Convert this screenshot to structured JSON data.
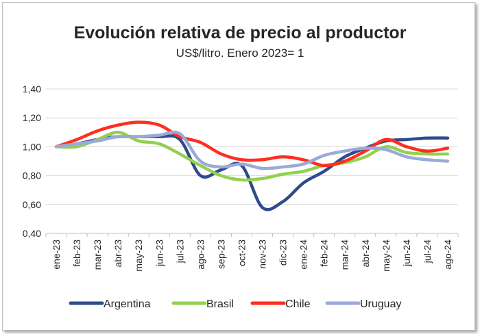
{
  "chart_data": {
    "type": "line",
    "title": "Evolución relativa de precio al productor",
    "subtitle": "US$/litro. Enero 2023= 1",
    "categories": [
      "ene-23",
      "feb-23",
      "mar-23",
      "abr-23",
      "may-23",
      "jun-23",
      "jul-23",
      "ago-23",
      "sep-23",
      "oct-23",
      "nov-23",
      "dic-23",
      "ene-24",
      "feb-24",
      "mar-24",
      "abr-24",
      "may-24",
      "jun-24",
      "jul-24",
      "ago-24"
    ],
    "y_ticks": [
      "0,40",
      "0,60",
      "0,80",
      "1,00",
      "1,20",
      "1,40"
    ],
    "ylim": [
      0.4,
      1.4
    ],
    "grid": "horizontal",
    "legend_position": "bottom",
    "series": [
      {
        "name": "Argentina",
        "color": "#2f4b8c",
        "values": [
          1.0,
          1.02,
          1.05,
          1.07,
          1.07,
          1.07,
          1.05,
          0.8,
          0.84,
          0.87,
          0.58,
          0.62,
          0.75,
          0.83,
          0.93,
          0.99,
          1.04,
          1.05,
          1.06,
          1.06
        ]
      },
      {
        "name": "Brasil",
        "color": "#92d050",
        "values": [
          1.0,
          1.0,
          1.05,
          1.1,
          1.04,
          1.02,
          0.95,
          0.87,
          0.8,
          0.77,
          0.78,
          0.81,
          0.83,
          0.87,
          0.89,
          0.93,
          1.0,
          0.96,
          0.95,
          0.95
        ]
      },
      {
        "name": "Chile",
        "color": "#ff2e1f",
        "values": [
          1.0,
          1.05,
          1.11,
          1.15,
          1.17,
          1.15,
          1.07,
          1.03,
          0.95,
          0.91,
          0.91,
          0.93,
          0.91,
          0.87,
          0.9,
          0.97,
          1.05,
          1.0,
          0.97,
          0.99
        ]
      },
      {
        "name": "Uruguay",
        "color": "#9aaad8",
        "values": [
          1.0,
          1.02,
          1.04,
          1.07,
          1.07,
          1.08,
          1.09,
          0.9,
          0.86,
          0.88,
          0.85,
          0.86,
          0.88,
          0.94,
          0.97,
          0.99,
          0.98,
          0.93,
          0.91,
          0.9
        ]
      }
    ]
  }
}
